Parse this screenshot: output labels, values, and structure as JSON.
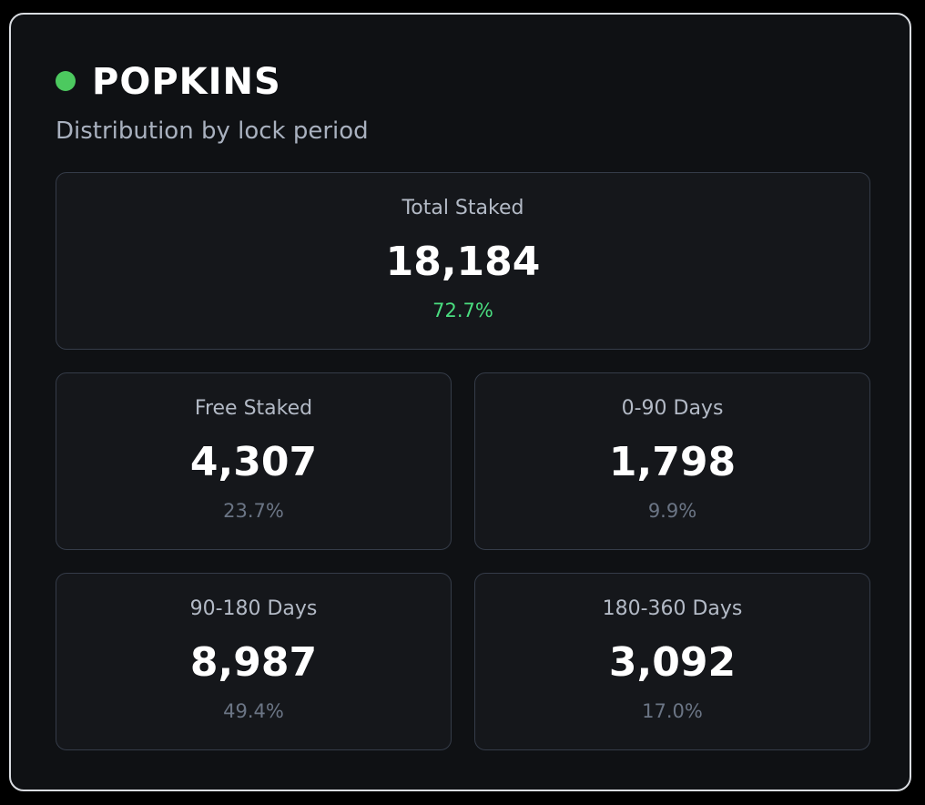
{
  "header": {
    "title": "POPKINS",
    "subtitle": "Distribution by lock period"
  },
  "total": {
    "label": "Total Staked",
    "value": "18,184",
    "percent": "72.7%"
  },
  "cards": [
    {
      "label": "Free Staked",
      "value": "4,307",
      "percent": "23.7%"
    },
    {
      "label": "0-90 Days",
      "value": "1,798",
      "percent": "9.9%"
    },
    {
      "label": "90-180 Days",
      "value": "8,987",
      "percent": "49.4%"
    },
    {
      "label": "180-360 Days",
      "value": "3,092",
      "percent": "17.0%"
    }
  ]
}
